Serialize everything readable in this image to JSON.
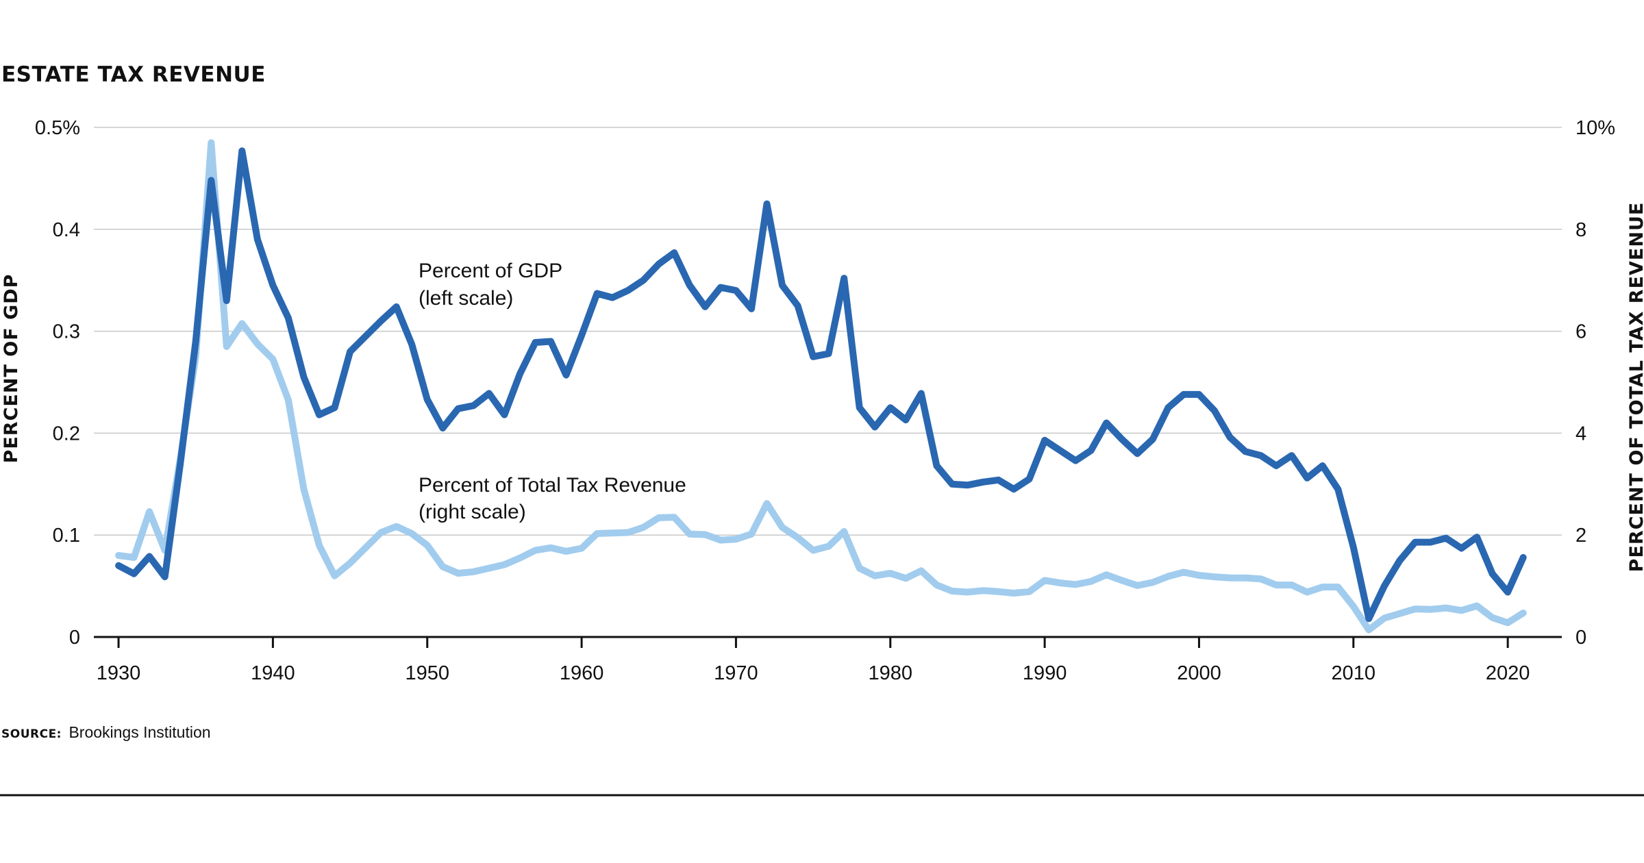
{
  "chart_data": {
    "type": "line",
    "title": "ESTATE TAX REVENUE",
    "ylabel_left": "PERCENT OF GDP",
    "ylabel_right": "PERCENT OF TOTAL TAX REVENUE",
    "ylim_left": [
      0,
      0.5
    ],
    "ylim_right": [
      0,
      10
    ],
    "xlim": [
      1928.4,
      2023.5
    ],
    "grid": true,
    "x_ticks": [
      1930,
      1940,
      1950,
      1960,
      1970,
      1980,
      1990,
      2000,
      2010,
      2020
    ],
    "left_ticks": [
      {
        "value": 0,
        "label": "0"
      },
      {
        "value": 0.1,
        "label": "0.1"
      },
      {
        "value": 0.2,
        "label": "0.2"
      },
      {
        "value": 0.3,
        "label": "0.3"
      },
      {
        "value": 0.4,
        "label": "0.4"
      },
      {
        "value": 0.5,
        "label": "0.5%"
      }
    ],
    "right_ticks": [
      {
        "value": 0,
        "label": "0"
      },
      {
        "value": 2,
        "label": "2"
      },
      {
        "value": 4,
        "label": "4"
      },
      {
        "value": 6,
        "label": "6"
      },
      {
        "value": 8,
        "label": "8"
      },
      {
        "value": 10,
        "label": "10%"
      }
    ],
    "x": [
      1930,
      1931,
      1932,
      1933,
      1934,
      1935,
      1936,
      1937,
      1938,
      1939,
      1940,
      1941,
      1942,
      1943,
      1944,
      1945,
      1946,
      1947,
      1948,
      1949,
      1950,
      1951,
      1952,
      1953,
      1954,
      1955,
      1956,
      1957,
      1958,
      1959,
      1960,
      1961,
      1962,
      1963,
      1964,
      1965,
      1966,
      1967,
      1968,
      1969,
      1970,
      1971,
      1972,
      1973,
      1974,
      1975,
      1976,
      1977,
      1978,
      1979,
      1980,
      1981,
      1982,
      1983,
      1984,
      1985,
      1986,
      1987,
      1988,
      1989,
      1990,
      1991,
      1992,
      1993,
      1994,
      1995,
      1996,
      1997,
      1998,
      1999,
      2000,
      2001,
      2002,
      2003,
      2004,
      2005,
      2006,
      2007,
      2008,
      2009,
      2010,
      2011,
      2012,
      2013,
      2014,
      2015,
      2016,
      2017,
      2018,
      2019,
      2020,
      2021
    ],
    "series": [
      {
        "name": "Percent of GDP",
        "axis": "left",
        "color": "#2a67b1",
        "values": [
          0.07,
          0.062,
          0.079,
          0.059,
          0.17,
          0.29,
          0.448,
          0.33,
          0.477,
          0.39,
          0.345,
          0.313,
          0.255,
          0.218,
          0.225,
          0.28,
          0.295,
          0.31,
          0.324,
          0.287,
          0.233,
          0.205,
          0.224,
          0.227,
          0.239,
          0.218,
          0.258,
          0.289,
          0.29,
          0.257,
          0.296,
          0.337,
          0.333,
          0.34,
          0.35,
          0.366,
          0.377,
          0.345,
          0.324,
          0.343,
          0.34,
          0.322,
          0.425,
          0.345,
          0.325,
          0.275,
          0.278,
          0.352,
          0.225,
          0.206,
          0.225,
          0.213,
          0.239,
          0.168,
          0.15,
          0.149,
          0.152,
          0.154,
          0.145,
          0.155,
          0.193,
          0.183,
          0.173,
          0.183,
          0.21,
          0.194,
          0.18,
          0.194,
          0.225,
          0.238,
          0.238,
          0.222,
          0.196,
          0.182,
          0.178,
          0.168,
          0.178,
          0.156,
          0.168,
          0.145,
          0.088,
          0.018,
          0.05,
          0.075,
          0.093,
          0.093,
          0.097,
          0.087,
          0.098,
          0.062,
          0.044,
          0.078
        ]
      },
      {
        "name": "Percent of Total Tax Revenue",
        "axis": "right",
        "color": "#a1ccee",
        "values": [
          1.6,
          1.56,
          2.46,
          1.7,
          3.5,
          5.5,
          9.7,
          5.7,
          6.15,
          5.75,
          5.45,
          4.65,
          2.9,
          1.8,
          1.2,
          1.45,
          1.75,
          2.05,
          2.17,
          2.03,
          1.8,
          1.38,
          1.25,
          1.28,
          1.35,
          1.42,
          1.55,
          1.7,
          1.75,
          1.68,
          1.74,
          2.03,
          2.04,
          2.05,
          2.15,
          2.34,
          2.35,
          2.02,
          2.01,
          1.9,
          1.92,
          2.02,
          2.62,
          2.15,
          1.95,
          1.7,
          1.78,
          2.07,
          1.35,
          1.2,
          1.25,
          1.15,
          1.3,
          1.02,
          0.9,
          0.88,
          0.91,
          0.89,
          0.86,
          0.89,
          1.11,
          1.06,
          1.03,
          1.09,
          1.22,
          1.11,
          1.01,
          1.07,
          1.19,
          1.27,
          1.21,
          1.18,
          1.16,
          1.16,
          1.14,
          1.02,
          1.02,
          0.88,
          0.98,
          0.98,
          0.6,
          0.14,
          0.37,
          0.46,
          0.55,
          0.54,
          0.57,
          0.52,
          0.61,
          0.38,
          0.28,
          0.47
        ]
      }
    ],
    "annotations": [
      {
        "text": "Percent of GDP",
        "line": 1
      },
      {
        "text": "(left scale)",
        "line": 2
      },
      {
        "text": "Percent of Total Tax Revenue",
        "line": 1
      },
      {
        "text": "(right scale)",
        "line": 2
      }
    ],
    "source_label": "SOURCE:",
    "source_text": "Brookings Institution"
  }
}
